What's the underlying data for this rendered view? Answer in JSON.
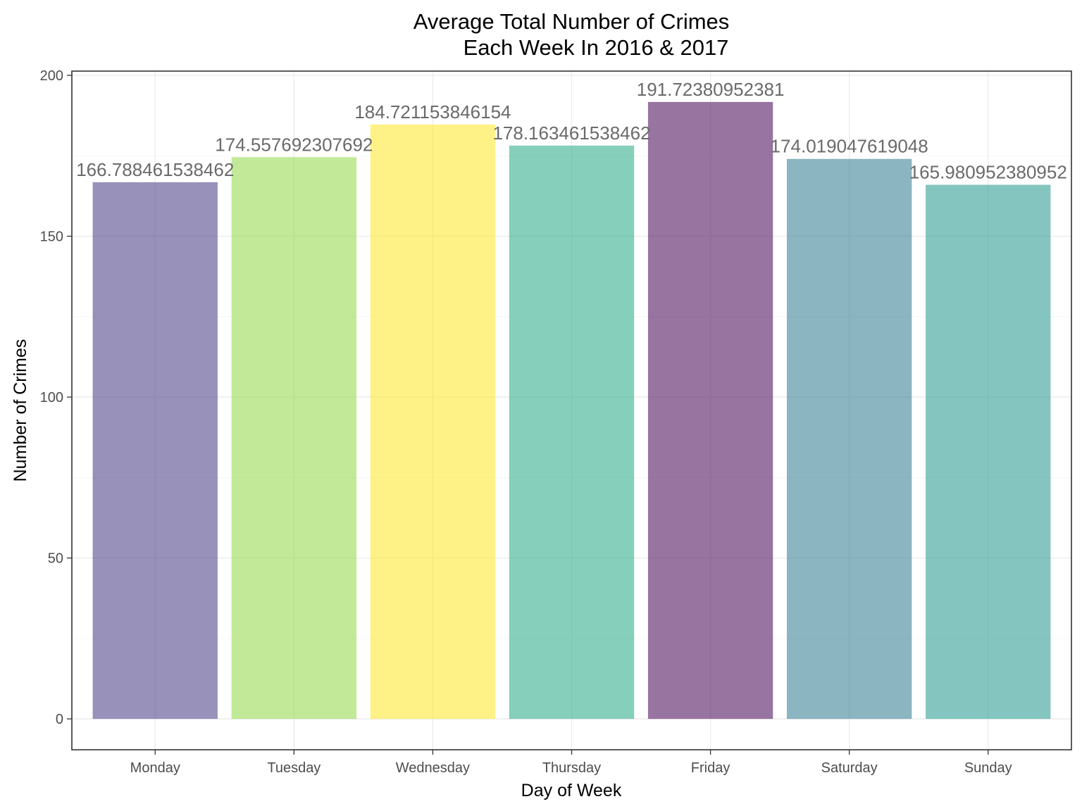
{
  "chart_data": {
    "type": "bar",
    "title": [
      "Average Total Number of Crimes",
      "Each Week In 2016 & 2017"
    ],
    "xlabel": "Day of Week",
    "ylabel": "Number of Crimes",
    "categories": [
      "Monday",
      "Tuesday",
      "Wednesday",
      "Thursday",
      "Friday",
      "Saturday",
      "Sunday"
    ],
    "values": [
      166.788461538462,
      174.557692307692,
      184.721153846154,
      178.163461538462,
      191.72380952381,
      174.019047619048,
      165.980952380952
    ],
    "data_labels": [
      "166.788461538462",
      "174.557692307692",
      "184.721153846154",
      "178.163461538462",
      "191.72380952381",
      "174.019047619048",
      "165.980952380952"
    ],
    "colors": [
      "#443983",
      "#8fd744",
      "#fde725",
      "#22a884",
      "#440154",
      "#2a788e",
      "#1f968b"
    ],
    "bar_opacity": 0.55,
    "yticks": [
      0,
      50,
      100,
      150,
      200
    ],
    "ylim": [
      -9.59,
      201.31
    ],
    "grid": true,
    "legend": "none"
  }
}
